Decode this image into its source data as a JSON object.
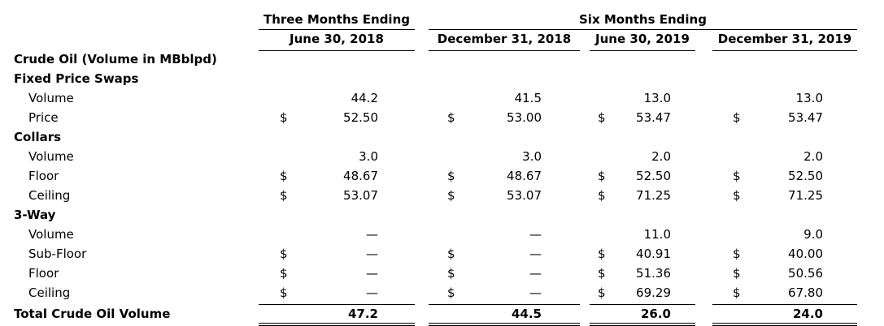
{
  "header": {
    "group1": "Three Months Ending",
    "group2": "Six Months Ending",
    "columns": [
      "June 30, 2018",
      "December 31, 2018",
      "June 30, 2019",
      "December 31, 2019"
    ]
  },
  "currency": "$",
  "rows": [
    {
      "label": "Crude Oil (Volume in MBblpd)",
      "type": "section",
      "cells": [
        "",
        "",
        "",
        ""
      ],
      "dollar": [
        false,
        false,
        false,
        false
      ]
    },
    {
      "label": "Fixed Price Swaps",
      "type": "section",
      "cells": [
        "",
        "",
        "",
        ""
      ],
      "dollar": [
        false,
        false,
        false,
        false
      ]
    },
    {
      "label": "Volume",
      "type": "item",
      "cells": [
        "44.2",
        "41.5",
        "13.0",
        "13.0"
      ],
      "dollar": [
        false,
        false,
        false,
        false
      ]
    },
    {
      "label": "Price",
      "type": "item",
      "cells": [
        "52.50",
        "53.00",
        "53.47",
        "53.47"
      ],
      "dollar": [
        true,
        true,
        true,
        true
      ]
    },
    {
      "label": "Collars",
      "type": "section",
      "cells": [
        "",
        "",
        "",
        ""
      ],
      "dollar": [
        false,
        false,
        false,
        false
      ]
    },
    {
      "label": "Volume",
      "type": "item",
      "cells": [
        "3.0",
        "3.0",
        "2.0",
        "2.0"
      ],
      "dollar": [
        false,
        false,
        false,
        false
      ]
    },
    {
      "label": "Floor",
      "type": "item",
      "cells": [
        "48.67",
        "48.67",
        "52.50",
        "52.50"
      ],
      "dollar": [
        true,
        true,
        true,
        true
      ]
    },
    {
      "label": "Ceiling",
      "type": "item",
      "cells": [
        "53.07",
        "53.07",
        "71.25",
        "71.25"
      ],
      "dollar": [
        true,
        true,
        true,
        true
      ]
    },
    {
      "label": "3-Way",
      "type": "section",
      "cells": [
        "",
        "",
        "",
        ""
      ],
      "dollar": [
        false,
        false,
        false,
        false
      ]
    },
    {
      "label": "Volume",
      "type": "item",
      "cells": [
        "—",
        "—",
        "11.0",
        "9.0"
      ],
      "dollar": [
        false,
        false,
        false,
        false
      ]
    },
    {
      "label": "Sub-Floor",
      "type": "item",
      "cells": [
        "—",
        "—",
        "40.91",
        "40.00"
      ],
      "dollar": [
        true,
        true,
        true,
        true
      ]
    },
    {
      "label": "Floor",
      "type": "item",
      "cells": [
        "—",
        "—",
        "51.36",
        "50.56"
      ],
      "dollar": [
        true,
        true,
        true,
        true
      ]
    },
    {
      "label": "Ceiling",
      "type": "item",
      "cells": [
        "—",
        "—",
        "69.29",
        "67.80"
      ],
      "dollar": [
        true,
        true,
        true,
        true
      ]
    }
  ],
  "total": {
    "label": "Total Crude Oil Volume",
    "cells": [
      "47.2",
      "44.5",
      "26.0",
      "24.0"
    ]
  }
}
